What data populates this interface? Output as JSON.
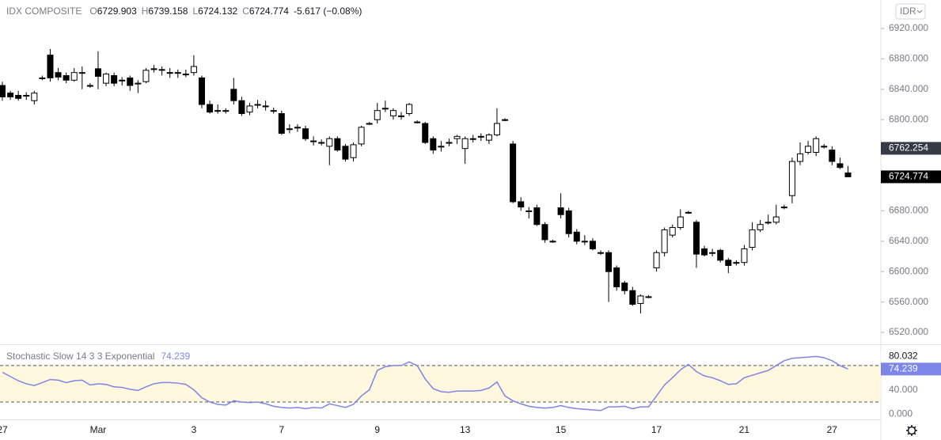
{
  "toolbar": {
    "currency": "IDR"
  },
  "chart_data": [
    {
      "type": "candlestick",
      "title": "IDX COMPOSITE",
      "fields": [
        {
          "label": "O",
          "value": "6729.903"
        },
        {
          "label": "H",
          "value": "6739.158"
        },
        {
          "label": "L",
          "value": "6724.132"
        },
        {
          "label": "C",
          "value": "6724.774"
        }
      ],
      "change": "-5.617 (−0.08%)",
      "categories": [
        "27",
        null,
        null,
        null,
        null,
        null,
        null,
        null,
        null,
        null,
        null,
        null,
        "Mar",
        null,
        null,
        null,
        null,
        null,
        null,
        null,
        null,
        null,
        null,
        null,
        "3",
        null,
        null,
        null,
        null,
        null,
        null,
        null,
        null,
        null,
        null,
        "7",
        null,
        null,
        null,
        null,
        null,
        null,
        null,
        null,
        null,
        null,
        null,
        "9",
        null,
        null,
        null,
        null,
        null,
        null,
        null,
        null,
        null,
        null,
        "13",
        null,
        null,
        null,
        null,
        null,
        null,
        null,
        null,
        null,
        null,
        null,
        "15",
        null,
        null,
        null,
        null,
        null,
        null,
        null,
        null,
        null,
        null,
        null,
        "17",
        null,
        null,
        null,
        null,
        null,
        null,
        null,
        null,
        null,
        null,
        "21",
        null,
        null,
        null,
        null,
        null,
        null,
        null,
        null,
        null,
        null,
        "27",
        null,
        null
      ],
      "open": [
        6845,
        6835,
        6832,
        6831,
        6825,
        6855,
        6885,
        6862,
        6858,
        6852,
        6862,
        6845,
        6867,
        6848,
        6858,
        6852,
        6855,
        6848,
        6850,
        6866,
        6866,
        6862,
        6862,
        6860,
        6862,
        6855,
        6820,
        6812,
        6812,
        6840,
        6825,
        6810,
        6820,
        6818,
        6812,
        6808,
        6788,
        6790,
        6788,
        6772,
        6770,
        6765,
        6775,
        6765,
        6750,
        6768,
        6795,
        6800,
        6815,
        6805,
        6805,
        6808,
        6797,
        6795,
        6775,
        6765,
        6770,
        6775,
        6762,
        6775,
        6778,
        6773,
        6780,
        6800,
        6768,
        6692,
        6680,
        6684,
        6662,
        6640,
        6684,
        6680,
        6652,
        6640,
        6640,
        6625,
        6625,
        6605,
        6585,
        6575,
        6558,
        6567,
        6605,
        6625,
        6648,
        6658,
        6678,
        6665,
        6630,
        6625,
        6628,
        6615,
        6612,
        6612,
        6632,
        6655,
        6665,
        6665,
        6685,
        6700,
        6745,
        6757,
        6757,
        6765,
        6760,
        6742,
        6729.903
      ],
      "high": [
        6850,
        6838,
        6838,
        6836,
        6838,
        6858,
        6893,
        6868,
        6862,
        6868,
        6870,
        6848,
        6890,
        6862,
        6862,
        6856,
        6858,
        6852,
        6868,
        6872,
        6870,
        6868,
        6866,
        6866,
        6885,
        6858,
        6825,
        6820,
        6815,
        6855,
        6830,
        6822,
        6826,
        6825,
        6816,
        6812,
        6794,
        6794,
        6792,
        6778,
        6774,
        6778,
        6778,
        6768,
        6770,
        6792,
        6797,
        6822,
        6825,
        6815,
        6810,
        6822,
        6799,
        6797,
        6778,
        6772,
        6775,
        6780,
        6778,
        6780,
        6782,
        6782,
        6815,
        6802,
        6772,
        6698,
        6685,
        6688,
        6665,
        6642,
        6703,
        6684,
        6656,
        6648,
        6644,
        6628,
        6628,
        6608,
        6588,
        6580,
        6570,
        6569,
        6628,
        6658,
        6662,
        6682,
        6680,
        6668,
        6634,
        6630,
        6630,
        6618,
        6615,
        6635,
        6665,
        6668,
        6675,
        6688,
        6688,
        6750,
        6770,
        6772,
        6778,
        6768,
        6765,
        6750,
        6739.158
      ],
      "low": [
        6825,
        6826,
        6825,
        6826,
        6820,
        6852,
        6850,
        6852,
        6848,
        6850,
        6840,
        6842,
        6840,
        6844,
        6844,
        6845,
        6838,
        6835,
        6848,
        6862,
        6858,
        6855,
        6855,
        6856,
        6858,
        6815,
        6808,
        6808,
        6808,
        6820,
        6805,
        6806,
        6815,
        6812,
        6808,
        6780,
        6782,
        6784,
        6772,
        6766,
        6766,
        6740,
        6758,
        6745,
        6745,
        6765,
        6793,
        6795,
        6810,
        6800,
        6800,
        6805,
        6795,
        6768,
        6755,
        6758,
        6765,
        6768,
        6742,
        6770,
        6772,
        6768,
        6778,
        6798,
        6690,
        6680,
        6670,
        6660,
        6638,
        6638,
        6670,
        6645,
        6636,
        6635,
        6628,
        6622,
        6560,
        6575,
        6570,
        6555,
        6545,
        6565,
        6600,
        6620,
        6645,
        6655,
        6676,
        6605,
        6620,
        6620,
        6612,
        6598,
        6608,
        6608,
        6628,
        6652,
        6662,
        6662,
        6682,
        6690,
        6740,
        6754,
        6752,
        6762,
        6740,
        6735,
        6724.132
      ],
      "close": [
        6830,
        6830,
        6828,
        6832,
        6835,
        6855,
        6855,
        6856,
        6852,
        6862,
        6862,
        6845,
        6857,
        6860,
        6848,
        6852,
        6845,
        6848,
        6865,
        6867,
        6865,
        6862,
        6862,
        6860,
        6870,
        6820,
        6810,
        6812,
        6812,
        6825,
        6808,
        6818,
        6820,
        6818,
        6812,
        6782,
        6788,
        6790,
        6775,
        6772,
        6770,
        6775,
        6760,
        6748,
        6767,
        6790,
        6795,
        6812,
        6815,
        6812,
        6805,
        6820,
        6797,
        6770,
        6760,
        6765,
        6770,
        6778,
        6775,
        6775,
        6778,
        6780,
        6795,
        6800,
        6692,
        6685,
        6680,
        6662,
        6642,
        6640,
        6675,
        6650,
        6640,
        6640,
        6630,
        6625,
        6600,
        6580,
        6575,
        6557,
        6568,
        6567,
        6625,
        6655,
        6658,
        6672,
        6678,
        6623,
        6622,
        6625,
        6615,
        6608,
        6612,
        6630,
        6655,
        6662,
        6665,
        6672,
        6685,
        6745,
        6755,
        6765,
        6775,
        6765,
        6745,
        6737,
        6724.774
      ],
      "ylim": [
        6504.4,
        6957.5
      ],
      "yticks": [
        {
          "value": 6920,
          "label": "6920.000"
        },
        {
          "value": 6880,
          "label": "6880.000"
        },
        {
          "value": 6840,
          "label": "6840.000"
        },
        {
          "value": 6800,
          "label": "6800.000"
        },
        {
          "value": 6760,
          "label": "6760.000"
        },
        {
          "value": 6720,
          "label": "6720.000"
        },
        {
          "value": 6680,
          "label": "6680.000"
        },
        {
          "value": 6640,
          "label": "6640.000"
        },
        {
          "value": 6600,
          "label": "6600.000"
        },
        {
          "value": 6560,
          "label": "6560.000"
        },
        {
          "value": 6520,
          "label": "6520.000"
        }
      ],
      "markers": [
        {
          "value": 6762.254,
          "label": "6762.254",
          "color": "#363a45"
        },
        {
          "value": 6724.774,
          "label": "6724.774",
          "color": "#000000"
        }
      ]
    },
    {
      "type": "line",
      "title": "Stochastic Slow 14 3 3 Exponential",
      "legend_value": "74.239",
      "color": "#7e85e8",
      "values": [
        69,
        62,
        55,
        50,
        47,
        52,
        57,
        56,
        52,
        55,
        56,
        48,
        50,
        49,
        45,
        44,
        41,
        39,
        45,
        50,
        52,
        52,
        51,
        49,
        40,
        27,
        20,
        16,
        15,
        22,
        20,
        19,
        20,
        17,
        13,
        11,
        10,
        11,
        9,
        11,
        10,
        17,
        14,
        11,
        16,
        30,
        40,
        72,
        78,
        80,
        80,
        86,
        80,
        58,
        42,
        37,
        36,
        38,
        38,
        38,
        39,
        43,
        53,
        30,
        22,
        17,
        13,
        11,
        10,
        11,
        14,
        11,
        9,
        8,
        7,
        6,
        12,
        12,
        13,
        9,
        12,
        12,
        30,
        48,
        60,
        73,
        82,
        70,
        63,
        60,
        55,
        49,
        50,
        60,
        64,
        68,
        72,
        80,
        88,
        92,
        93,
        94,
        95,
        93,
        88,
        80,
        74.239
      ],
      "ylim": [
        -8.7,
        113.8
      ],
      "yticks": [
        {
          "value": 0,
          "label": "0.000"
        },
        {
          "value": 40,
          "label": "40.000"
        }
      ],
      "bands": [
        20,
        80
      ],
      "band_color": "#fff7de",
      "markers": [
        {
          "value": 80.032,
          "label": "80.032",
          "color": "#ffffff"
        },
        {
          "value": 74.239,
          "label": "74.239",
          "color": "#7e85e8"
        }
      ]
    }
  ]
}
